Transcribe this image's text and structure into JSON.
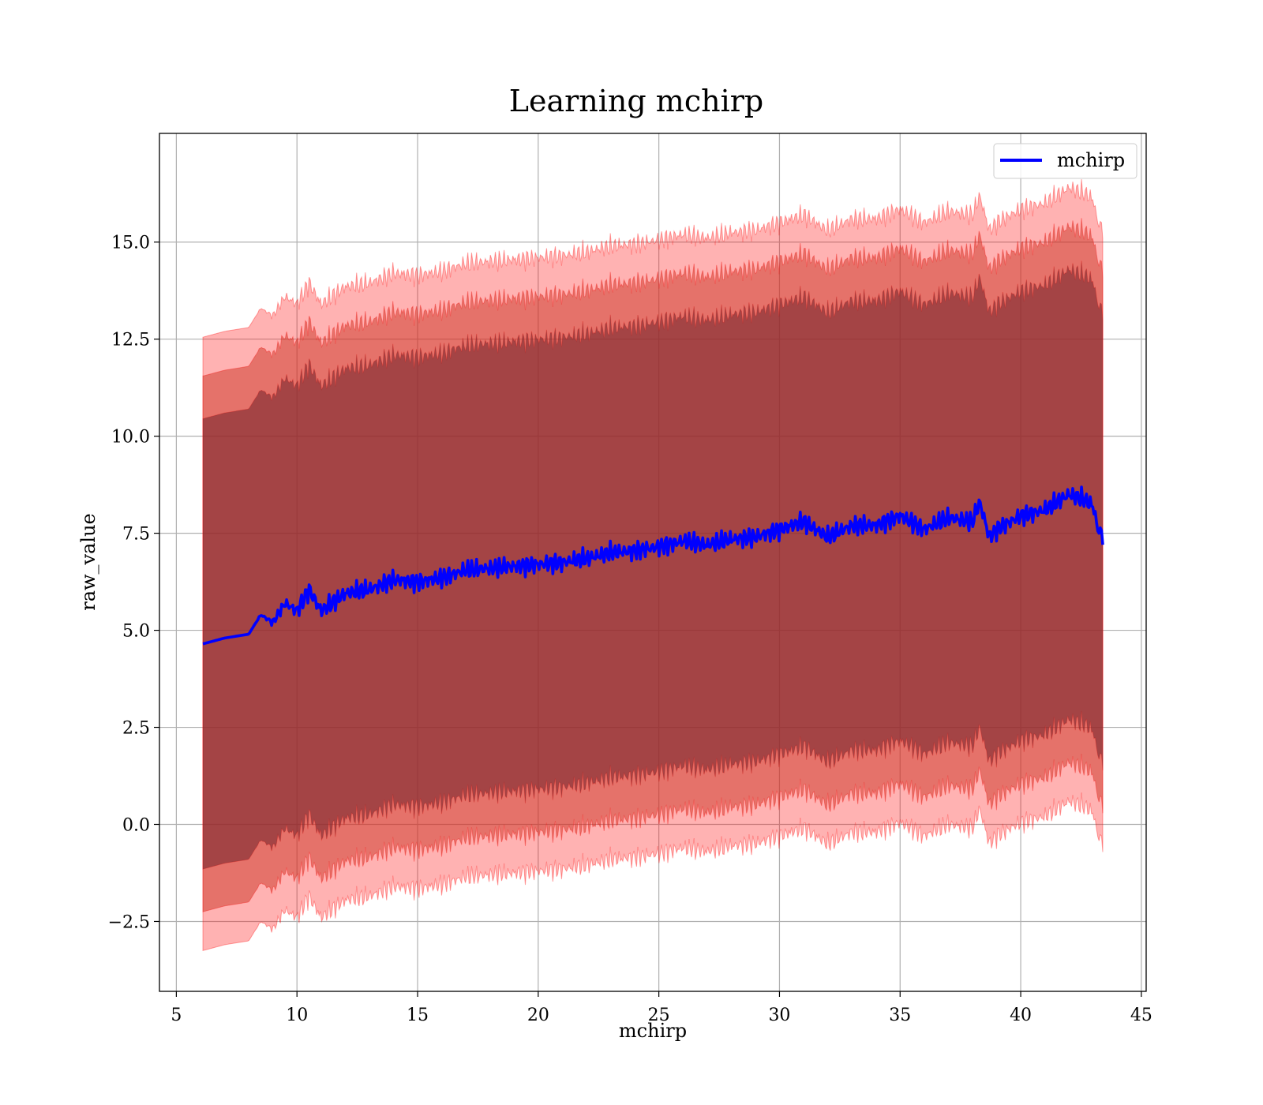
{
  "chart_data": {
    "type": "area",
    "title": "Learning mchirp",
    "xlabel": "mchirp",
    "ylabel": "raw_value",
    "xlim": [
      4.3,
      45.2
    ],
    "ylim": [
      -4.3,
      17.8
    ],
    "x_ticks": [
      5,
      10,
      15,
      20,
      25,
      30,
      35,
      40,
      45
    ],
    "y_ticks": [
      -2.5,
      0.0,
      2.5,
      5.0,
      7.5,
      10.0,
      12.5,
      15.0
    ],
    "x_tick_labels": [
      "5",
      "10",
      "15",
      "20",
      "25",
      "30",
      "35",
      "40",
      "45"
    ],
    "y_tick_labels": [
      "−2.5",
      "0.0",
      "2.5",
      "5.0",
      "7.5",
      "10.0",
      "12.5",
      "15.0"
    ],
    "grid": true,
    "legend": {
      "placement": "top-right",
      "entries": [
        "mchirp"
      ]
    },
    "colors": {
      "line": "#0000ff",
      "band": "#ff0000",
      "band_mid_tint": "#a05a3c"
    },
    "x": [
      6.1,
      7,
      8,
      8.5,
      9,
      9.5,
      10,
      10.5,
      11,
      12,
      13,
      14,
      15,
      16,
      17,
      18,
      19,
      20,
      21,
      22,
      23,
      24,
      25,
      26,
      27,
      28,
      29,
      30,
      31,
      32,
      33,
      34,
      35,
      36,
      37,
      38,
      38.3,
      38.7,
      39,
      40,
      41,
      42,
      42.7,
      43,
      43.2,
      43.4
    ],
    "series": [
      {
        "name": "mchirp",
        "values": [
          4.65,
          4.8,
          4.9,
          5.4,
          5.2,
          5.7,
          5.5,
          6.05,
          5.5,
          5.95,
          6.05,
          6.3,
          6.25,
          6.35,
          6.55,
          6.6,
          6.65,
          6.7,
          6.75,
          6.85,
          7.0,
          7.05,
          7.15,
          7.3,
          7.2,
          7.35,
          7.4,
          7.6,
          7.8,
          7.4,
          7.7,
          7.7,
          7.95,
          7.6,
          7.9,
          7.8,
          8.3,
          7.4,
          7.6,
          7.95,
          8.1,
          8.5,
          8.35,
          8.2,
          7.6,
          7.45
        ]
      }
    ],
    "bands": [
      {
        "level": "inner",
        "offset": 5.8
      },
      {
        "level": "middle",
        "offset": 6.9
      },
      {
        "level": "outer",
        "offset": 7.9
      }
    ]
  }
}
